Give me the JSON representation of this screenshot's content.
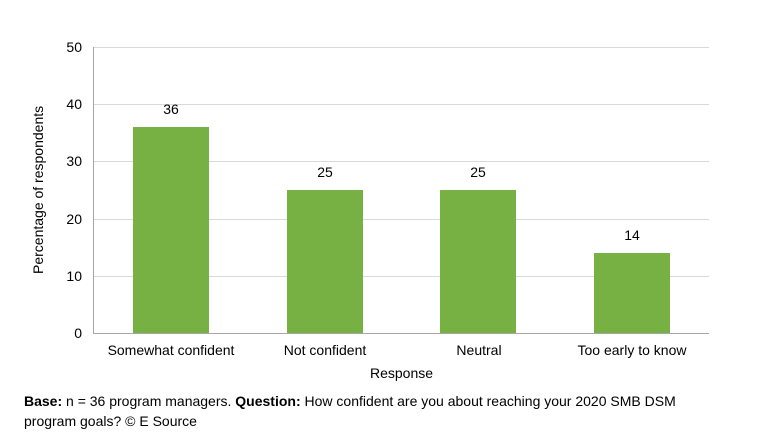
{
  "chart_data": {
    "type": "bar",
    "title": "",
    "categories": [
      "Somewhat confident",
      "Not confident",
      "Neutral",
      "Too early to know"
    ],
    "values": [
      36,
      25,
      25,
      14
    ],
    "xlabel": "Response",
    "ylabel": "Percentage of respondents",
    "ylim": [
      0,
      50
    ],
    "yticks": [
      0,
      10,
      20,
      30,
      40,
      50
    ],
    "grid": "horizontal",
    "legend": "none",
    "bar_color": "#77B043",
    "gridline_color": "#D9D9D9",
    "axis_color": "#A6A6A6",
    "text_color": "#000000"
  },
  "footer": {
    "base_label": "Base:",
    "base_text": " n = 36 program managers. ",
    "question_label": "Question:",
    "question_text": " How confident are you about reaching your 2020 SMB DSM program goals? © E Source"
  }
}
